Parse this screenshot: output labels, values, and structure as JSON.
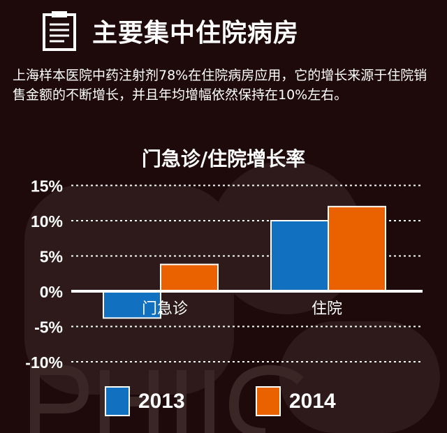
{
  "header": {
    "title": "主要集中住院病房",
    "icon": "clipboard-icon"
  },
  "intro": "上海样本医院中药注射剂78%在住院病房应用，它的增长来源于住院销售金额的不断增长，并且年均增幅依然保持在10%左右。",
  "watermark": "PHIIC",
  "chart_data": {
    "type": "bar",
    "title": "门急诊/住院增长率",
    "categories": [
      "门急诊",
      "住院"
    ],
    "series": [
      {
        "name": "2013",
        "values": [
          -3.8,
          10
        ],
        "color": "#1170c0"
      },
      {
        "name": "2014",
        "values": [
          3.8,
          12
        ],
        "color": "#ea6100"
      }
    ],
    "ylim": [
      -10,
      15
    ],
    "yticks": [
      15,
      10,
      5,
      0,
      -5,
      -10
    ],
    "ytick_labels": [
      "15%",
      "10%",
      "5%",
      "0%",
      "-5%",
      "-10%"
    ],
    "grid": "dotted horizontal",
    "legend": "bottom"
  }
}
